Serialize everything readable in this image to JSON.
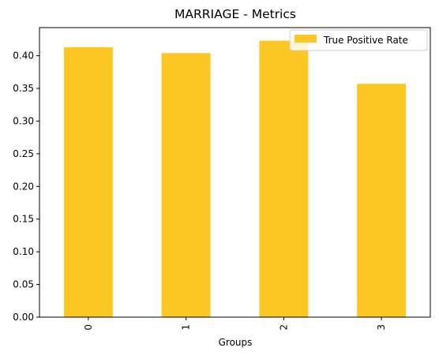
{
  "chart_data": {
    "type": "bar",
    "title": "MARRIAGE - Metrics",
    "xlabel": "Groups",
    "ylabel": "",
    "categories": [
      "0",
      "1",
      "2",
      "3"
    ],
    "series": [
      {
        "name": "True Positive Rate",
        "values": [
          0.413,
          0.404,
          0.423,
          0.357
        ],
        "color": "#fcc624"
      }
    ],
    "ylim": [
      0,
      0.443
    ],
    "yticks": [
      "0.00",
      "0.05",
      "0.10",
      "0.15",
      "0.20",
      "0.25",
      "0.30",
      "0.35",
      "0.40"
    ],
    "grid": false,
    "legend_position": "top-right"
  }
}
